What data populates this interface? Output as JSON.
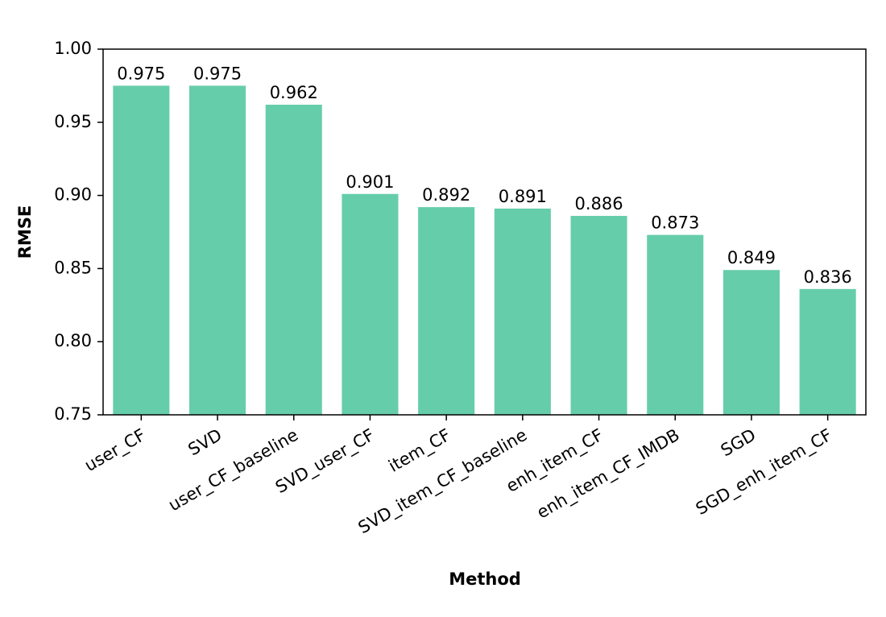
{
  "chart_data": {
    "type": "bar",
    "categories": [
      "user_CF",
      "SVD",
      "user_CF_baseline",
      "SVD_user_CF",
      "item_CF",
      "SVD_item_CF_baseline",
      "enh_item_CF",
      "enh_item_CF_IMDB",
      "SGD",
      "SGD_enh_item_CF"
    ],
    "values": [
      0.975,
      0.975,
      0.962,
      0.901,
      0.892,
      0.891,
      0.886,
      0.873,
      0.849,
      0.836
    ],
    "color": "#66cdaa",
    "x_label": "Method",
    "y_label": "RMSE",
    "ylim": [
      0.75,
      1.0
    ],
    "yticks": [
      0.75,
      {
        "value": 0.8,
        "label": "0.80"
      },
      0.85,
      {
        "value": 0.9,
        "label": "0.90"
      },
      0.95,
      {
        "value": 1.0,
        "label": "1.00"
      }
    ],
    "grid": false
  }
}
